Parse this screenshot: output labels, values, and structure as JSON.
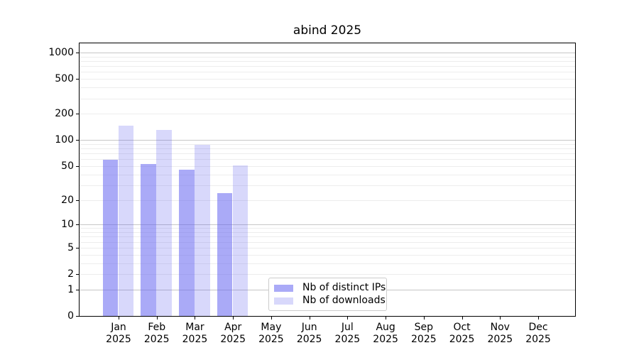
{
  "chart_data": {
    "type": "bar",
    "title": "abind 2025",
    "categories": [
      "Jan",
      "Feb",
      "Mar",
      "Apr",
      "May",
      "Jun",
      "Jul",
      "Aug",
      "Sep",
      "Oct",
      "Nov",
      "Dec"
    ],
    "year": "2025",
    "series": [
      {
        "name": "Nb of distinct IPs",
        "color": "rgba(100,100,240,0.55)",
        "values": [
          59,
          53,
          45,
          24,
          null,
          null,
          null,
          null,
          null,
          null,
          null,
          null
        ]
      },
      {
        "name": "Nb of downloads",
        "color": "rgba(100,100,240,0.25)",
        "values": [
          145,
          131,
          88,
          51,
          null,
          null,
          null,
          null,
          null,
          null,
          null,
          null
        ]
      }
    ],
    "y_axis": {
      "scale": "log1p",
      "ticks": [
        0,
        1,
        2,
        5,
        10,
        20,
        50,
        100,
        200,
        500,
        1000
      ],
      "tick_labels": [
        "0",
        "1",
        "2",
        "5",
        "10",
        "20",
        "50",
        "100",
        "200",
        "500",
        "1000"
      ],
      "max": 1274
    },
    "grid": {
      "major_ticks": [
        1,
        10,
        100,
        1000
      ],
      "major_color": "#c6c6c6",
      "minor_color": "#ededed"
    },
    "axis_color": "#000000",
    "legend_border_color": "#cccccc"
  }
}
